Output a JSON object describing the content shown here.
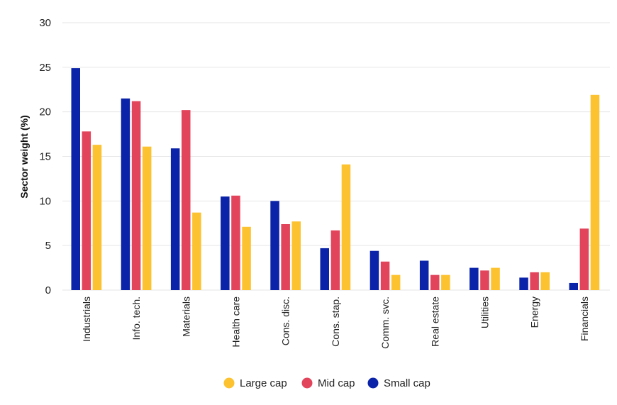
{
  "chart_data": {
    "type": "bar",
    "ylabel": "Sector weight (%)",
    "ylim": [
      0,
      30
    ],
    "yticks": [
      0,
      5,
      10,
      15,
      20,
      25,
      30
    ],
    "grid": true,
    "legend_position": "bottom",
    "categories": [
      "Industrials",
      "Info. tech.",
      "Materials",
      "Health care",
      "Cons. disc.",
      "Cons. stap.",
      "Comm. svc.",
      "Real estate",
      "Utilities",
      "Energy",
      "Financials"
    ],
    "series": [
      {
        "name": "Small cap",
        "color": "#0a23a8",
        "values": [
          24.9,
          21.5,
          15.9,
          10.5,
          10.0,
          4.7,
          4.4,
          3.3,
          2.5,
          1.4,
          0.8
        ]
      },
      {
        "name": "Mid cap",
        "color": "#e2445c",
        "values": [
          17.8,
          21.2,
          20.2,
          10.6,
          7.4,
          6.7,
          3.2,
          1.7,
          2.2,
          2.0,
          6.9
        ]
      },
      {
        "name": "Large cap",
        "color": "#fcc230",
        "values": [
          16.3,
          16.1,
          8.7,
          7.1,
          7.7,
          14.1,
          1.7,
          1.7,
          2.5,
          2.0,
          21.9
        ]
      }
    ],
    "legend_order": [
      "Large cap",
      "Mid cap",
      "Small cap"
    ]
  }
}
